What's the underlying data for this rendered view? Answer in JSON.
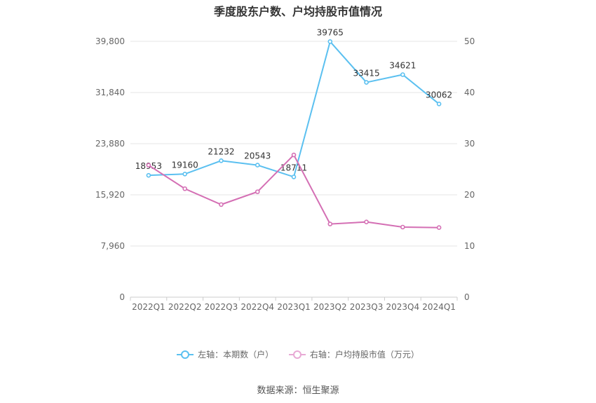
{
  "chart_data": {
    "type": "line",
    "title": "季度股东户数、户均持股市值情况",
    "categories": [
      "2022Q1",
      "2022Q2",
      "2022Q3",
      "2022Q4",
      "2023Q1",
      "2023Q2",
      "2023Q3",
      "2023Q4",
      "2024Q1"
    ],
    "series": [
      {
        "name": "左轴：本期数（户）",
        "axis": "left",
        "color": "#5bc0f0",
        "values": [
          18953,
          19160,
          21232,
          20543,
          18711,
          39765,
          33415,
          34621,
          30062
        ],
        "labels": [
          "18953",
          "19160",
          "21232",
          "20543",
          "18711",
          "39765",
          "33415",
          "34621",
          "30062"
        ]
      },
      {
        "name": "右轴：户均持股市值（万元）",
        "axis": "right",
        "color": "#d46fb4",
        "values": [
          25.8,
          21.2,
          18.1,
          20.6,
          27.8,
          14.3,
          14.7,
          13.7,
          13.6
        ]
      }
    ],
    "y_left": {
      "min": 0,
      "max": 39800,
      "ticks": [
        0,
        7960,
        15920,
        23880,
        31840,
        39800
      ],
      "tick_labels": [
        "0",
        "7,960",
        "15,920",
        "23,880",
        "31,840",
        "39,800"
      ]
    },
    "y_right": {
      "min": 0,
      "max": 50,
      "ticks": [
        0,
        10,
        20,
        30,
        40,
        50
      ],
      "tick_labels": [
        "0",
        "10",
        "20",
        "30",
        "40",
        "50"
      ]
    },
    "grid": true,
    "legend_position": "bottom"
  },
  "source": "数据来源：恒生聚源"
}
